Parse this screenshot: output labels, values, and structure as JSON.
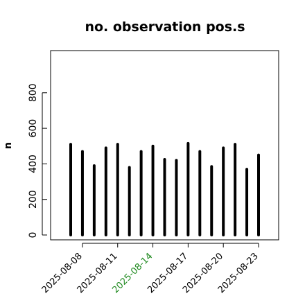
{
  "chart_data": {
    "type": "bar",
    "title": "no. observation pos.s",
    "xlabel": "",
    "ylabel": "n",
    "ylim": [
      0,
      1000
    ],
    "yticks": [
      0,
      200,
      400,
      600,
      800
    ],
    "ytick_labels": [
      "0",
      "200",
      "400",
      "600",
      "800"
    ],
    "x": [
      "2025-08-07",
      "2025-08-08",
      "2025-08-09",
      "2025-08-10",
      "2025-08-11",
      "2025-08-12",
      "2025-08-13",
      "2025-08-14",
      "2025-08-15",
      "2025-08-16",
      "2025-08-17",
      "2025-08-18",
      "2025-08-19",
      "2025-08-20",
      "2025-08-21",
      "2025-08-22",
      "2025-08-23"
    ],
    "values": [
      510,
      470,
      390,
      490,
      510,
      380,
      470,
      500,
      425,
      420,
      515,
      470,
      385,
      490,
      510,
      370,
      450
    ],
    "xtick_labels": [
      {
        "label": "2025-08-08",
        "color": "#000000"
      },
      {
        "label": "2025-08-11",
        "color": "#000000"
      },
      {
        "label": "2025-08-14",
        "color": "#228B22"
      },
      {
        "label": "2025-08-17",
        "color": "#000000"
      },
      {
        "label": "2025-08-20",
        "color": "#000000"
      },
      {
        "label": "2025-08-23",
        "color": "#000000"
      }
    ],
    "bar_color": "#000000",
    "grid": false,
    "legend": "none"
  }
}
